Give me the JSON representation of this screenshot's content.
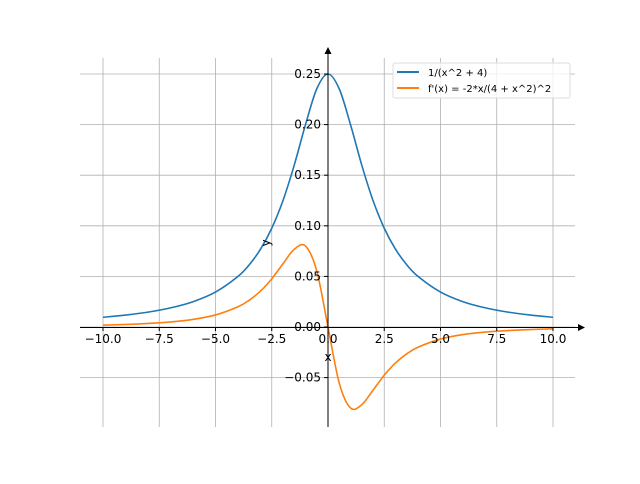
{
  "chart_data": {
    "type": "line",
    "title": "",
    "xlabel": "x",
    "ylabel": "y",
    "xlim": [
      -11,
      11
    ],
    "ylim": [
      -0.0988,
      0.267
    ],
    "grid": true,
    "legend_position": "top-right",
    "x_ticks": [
      -10,
      -7.5,
      -5,
      -2.5,
      0,
      2.5,
      5,
      7.5,
      10
    ],
    "x_tick_labels": [
      "−10.0",
      "−7.5",
      "−5.0",
      "−2.5",
      "0.0",
      "2.5",
      "5.0",
      "7.5",
      "10.0"
    ],
    "y_ticks": [
      -0.05,
      0,
      0.05,
      0.1,
      0.15,
      0.2,
      0.25
    ],
    "y_tick_labels": [
      "−0.05",
      "0.00",
      "0.05",
      "0.10",
      "0.15",
      "0.20",
      "0.25"
    ],
    "x": [
      -10,
      -9,
      -8,
      -7,
      -6,
      -5,
      -4,
      -3.5,
      -3,
      -2.5,
      -2,
      -1.5,
      -1,
      -0.5,
      0,
      0.5,
      1,
      1.5,
      2,
      2.5,
      3,
      3.5,
      4,
      5,
      6,
      7,
      8,
      9,
      10
    ],
    "series": [
      {
        "name": "1/(x^2 + 4)",
        "color": "#1f77b4",
        "values": [
          0.0096,
          0.0118,
          0.0147,
          0.0189,
          0.025,
          0.0345,
          0.05,
          0.0615,
          0.0769,
          0.0976,
          0.125,
          0.16,
          0.2,
          0.2353,
          0.25,
          0.2353,
          0.2,
          0.16,
          0.125,
          0.0976,
          0.0769,
          0.0615,
          0.05,
          0.0345,
          0.025,
          0.0189,
          0.0147,
          0.0118,
          0.0096
        ]
      },
      {
        "name": "f'(x) = -2*x/(4 + x^2)^2",
        "color": "#ff7f0e",
        "values": [
          0.0018,
          0.0025,
          0.0035,
          0.005,
          0.0075,
          0.0119,
          0.02,
          0.0265,
          0.0355,
          0.0476,
          0.0625,
          0.0768,
          0.08,
          0.0554,
          0,
          -0.0554,
          -0.08,
          -0.0768,
          -0.0625,
          -0.0476,
          -0.0355,
          -0.0265,
          -0.02,
          -0.0119,
          -0.0075,
          -0.005,
          -0.0035,
          -0.0025,
          -0.0018
        ]
      }
    ]
  }
}
